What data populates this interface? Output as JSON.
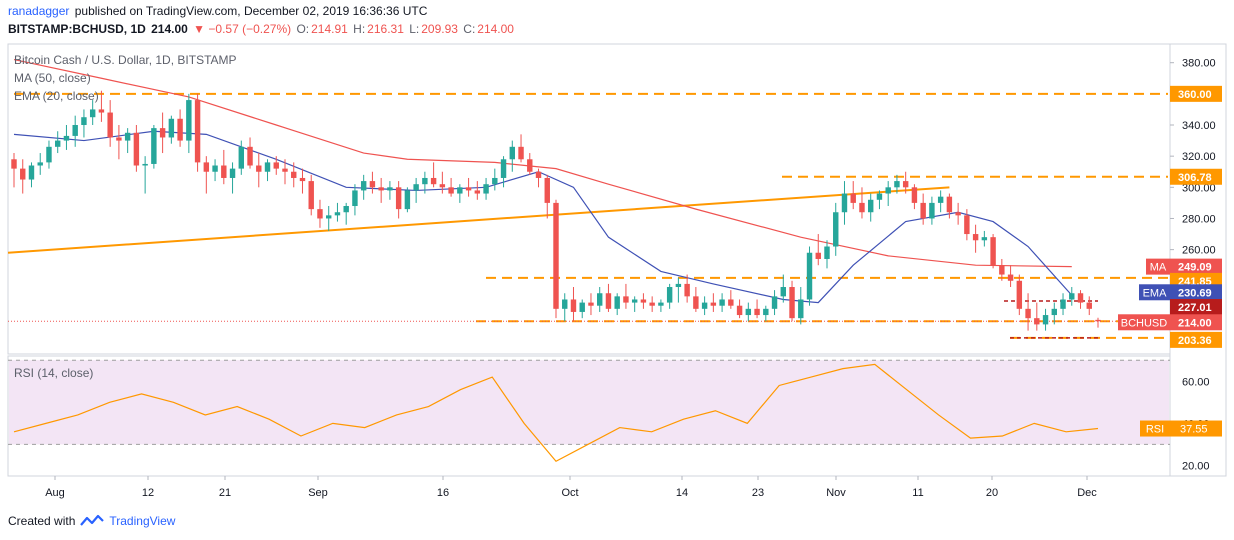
{
  "header": {
    "user": "ranadagger",
    "published_text": "published on TradingView.com, December 02, 2019 16:36:36 UTC",
    "symbol": "BITSTAMP:BCHUSD, 1D",
    "last": "214.00",
    "change": "▼ −0.57 (−0.27%)",
    "ohlc_o_label": "O:",
    "ohlc_o": "214.91",
    "ohlc_h_label": "H:",
    "ohlc_h": "216.31",
    "ohlc_l_label": "L:",
    "ohlc_l": "209.93",
    "ohlc_c_label": "C:",
    "ohlc_c": "214.00"
  },
  "legend": {
    "title": "Bitcoin Cash / U.S. Dollar, 1D, BITSTAMP",
    "ma": "MA (50, close)",
    "ema": "EMA (20, close)",
    "rsi": "RSI (14, close)"
  },
  "footer": {
    "created_with": "Created with",
    "brand": "TradingView"
  },
  "colors": {
    "up": "#26a69a",
    "down": "#ef5350",
    "ma": "#ef5350",
    "ema": "#3f51b5",
    "trend": "#ff9800",
    "support": "#ff9800",
    "rsi": "#ff9800",
    "rsi_fill": "#f3e5f5",
    "red_dash": "#b71c1c"
  },
  "chart_data": {
    "type": "candlestick",
    "x_ticks": [
      "Aug",
      "12",
      "21",
      "Sep",
      "16",
      "Oct",
      "14",
      "23",
      "Nov",
      "11",
      "20",
      "Dec"
    ],
    "y_ticks": [
      200,
      220,
      240,
      260,
      280,
      300,
      320,
      340,
      360,
      380
    ],
    "y_tick_labels": [
      "200.00",
      "220.00",
      "240.00",
      "260.00",
      "280.00",
      "300.00",
      "320.00",
      "340.00",
      "360.00",
      "380.00"
    ],
    "ylim": [
      193,
      392
    ],
    "price_tags": [
      {
        "label": "",
        "value": "360.00",
        "kind": "orange"
      },
      {
        "label": "",
        "value": "306.78",
        "kind": "orange"
      },
      {
        "label": "MA",
        "value": "249.09",
        "kind": "red"
      },
      {
        "label": "",
        "value": "241.85",
        "kind": "orange"
      },
      {
        "label": "EMA",
        "value": "230.69",
        "kind": "blue"
      },
      {
        "label": "",
        "value": "227.01",
        "kind": "darkred"
      },
      {
        "label": "BCHUSD",
        "value": "214.00",
        "kind": "red"
      },
      {
        "label": "",
        "value": "203.36",
        "kind": "orange"
      }
    ],
    "horizontal_levels": [
      360.0,
      306.78,
      241.85,
      214.0,
      203.36,
      227.01
    ],
    "ohlc": [
      [
        318,
        322,
        300,
        312
      ],
      [
        312,
        318,
        296,
        305
      ],
      [
        305,
        316,
        300,
        314
      ],
      [
        314,
        322,
        308,
        316
      ],
      [
        316,
        330,
        312,
        326
      ],
      [
        326,
        336,
        322,
        330
      ],
      [
        330,
        340,
        324,
        333
      ],
      [
        333,
        346,
        326,
        340
      ],
      [
        340,
        350,
        332,
        345
      ],
      [
        345,
        356,
        340,
        350
      ],
      [
        350,
        362,
        342,
        348
      ],
      [
        348,
        356,
        326,
        332
      ],
      [
        332,
        340,
        318,
        330
      ],
      [
        330,
        338,
        322,
        335
      ],
      [
        335,
        340,
        310,
        314
      ],
      [
        314,
        320,
        296,
        315
      ],
      [
        315,
        340,
        312,
        338
      ],
      [
        338,
        348,
        322,
        332
      ],
      [
        332,
        346,
        328,
        344
      ],
      [
        344,
        350,
        326,
        330
      ],
      [
        330,
        360,
        322,
        356
      ],
      [
        356,
        360,
        310,
        316
      ],
      [
        316,
        320,
        296,
        310
      ],
      [
        310,
        318,
        304,
        314
      ],
      [
        314,
        324,
        302,
        306
      ],
      [
        306,
        316,
        296,
        312
      ],
      [
        312,
        330,
        308,
        326
      ],
      [
        326,
        332,
        312,
        314
      ],
      [
        314,
        322,
        300,
        310
      ],
      [
        310,
        318,
        304,
        316
      ],
      [
        316,
        320,
        308,
        312
      ],
      [
        312,
        318,
        302,
        310
      ],
      [
        310,
        316,
        300,
        306
      ],
      [
        306,
        312,
        296,
        304
      ],
      [
        304,
        308,
        282,
        286
      ],
      [
        286,
        292,
        274,
        280
      ],
      [
        280,
        288,
        272,
        282
      ],
      [
        282,
        290,
        278,
        284
      ],
      [
        284,
        290,
        276,
        288
      ],
      [
        288,
        302,
        282,
        298
      ],
      [
        298,
        308,
        292,
        304
      ],
      [
        304,
        310,
        296,
        300
      ],
      [
        300,
        306,
        290,
        298
      ],
      [
        298,
        304,
        292,
        300
      ],
      [
        300,
        304,
        280,
        286
      ],
      [
        286,
        300,
        284,
        298
      ],
      [
        298,
        306,
        290,
        302
      ],
      [
        302,
        310,
        296,
        306
      ],
      [
        306,
        316,
        300,
        302
      ],
      [
        302,
        310,
        296,
        300
      ],
      [
        300,
        306,
        294,
        296
      ],
      [
        296,
        302,
        290,
        300
      ],
      [
        300,
        306,
        294,
        298
      ],
      [
        298,
        304,
        292,
        296
      ],
      [
        296,
        306,
        292,
        302
      ],
      [
        302,
        312,
        298,
        306
      ],
      [
        306,
        320,
        300,
        318
      ],
      [
        318,
        330,
        310,
        326
      ],
      [
        326,
        334,
        316,
        318
      ],
      [
        318,
        322,
        308,
        310
      ],
      [
        310,
        312,
        300,
        306
      ],
      [
        306,
        308,
        280,
        290
      ],
      [
        290,
        292,
        216,
        222
      ],
      [
        222,
        232,
        214,
        228
      ],
      [
        228,
        236,
        214,
        220
      ],
      [
        220,
        228,
        216,
        226
      ],
      [
        226,
        232,
        218,
        224
      ],
      [
        224,
        236,
        220,
        232
      ],
      [
        232,
        238,
        220,
        222
      ],
      [
        222,
        232,
        218,
        230
      ],
      [
        230,
        238,
        222,
        226
      ],
      [
        226,
        230,
        220,
        228
      ],
      [
        228,
        232,
        222,
        226
      ],
      [
        226,
        230,
        220,
        224
      ],
      [
        224,
        228,
        220,
        226
      ],
      [
        226,
        238,
        222,
        236
      ],
      [
        236,
        242,
        226,
        238
      ],
      [
        238,
        244,
        226,
        230
      ],
      [
        230,
        236,
        220,
        222
      ],
      [
        222,
        230,
        218,
        226
      ],
      [
        226,
        232,
        220,
        224
      ],
      [
        224,
        232,
        220,
        228
      ],
      [
        228,
        234,
        222,
        224
      ],
      [
        224,
        228,
        216,
        218
      ],
      [
        218,
        226,
        214,
        222
      ],
      [
        222,
        228,
        216,
        218
      ],
      [
        218,
        224,
        214,
        222
      ],
      [
        222,
        234,
        218,
        230
      ],
      [
        230,
        244,
        226,
        236
      ],
      [
        236,
        240,
        214,
        216
      ],
      [
        216,
        236,
        212,
        228
      ],
      [
        228,
        262,
        224,
        258
      ],
      [
        258,
        270,
        250,
        254
      ],
      [
        254,
        266,
        248,
        262
      ],
      [
        262,
        290,
        256,
        284
      ],
      [
        284,
        304,
        276,
        296
      ],
      [
        296,
        304,
        286,
        290
      ],
      [
        290,
        300,
        280,
        284
      ],
      [
        284,
        296,
        278,
        292
      ],
      [
        292,
        298,
        286,
        296
      ],
      [
        296,
        304,
        288,
        300
      ],
      [
        300,
        308,
        296,
        304
      ],
      [
        304,
        310,
        296,
        300
      ],
      [
        300,
        302,
        286,
        290
      ],
      [
        290,
        296,
        276,
        280
      ],
      [
        280,
        294,
        276,
        290
      ],
      [
        290,
        298,
        284,
        294
      ],
      [
        294,
        296,
        280,
        284
      ],
      [
        284,
        290,
        276,
        282
      ],
      [
        282,
        286,
        266,
        270
      ],
      [
        270,
        276,
        258,
        266
      ],
      [
        266,
        272,
        262,
        268
      ],
      [
        268,
        270,
        248,
        250
      ],
      [
        250,
        254,
        240,
        244
      ],
      [
        244,
        250,
        236,
        240
      ],
      [
        240,
        244,
        218,
        222
      ],
      [
        222,
        232,
        208,
        216
      ],
      [
        216,
        226,
        208,
        212
      ],
      [
        212,
        222,
        208,
        218
      ],
      [
        218,
        226,
        212,
        222
      ],
      [
        222,
        232,
        218,
        228
      ],
      [
        228,
        236,
        224,
        232
      ],
      [
        232,
        234,
        222,
        226
      ],
      [
        226,
        230,
        218,
        222
      ],
      [
        214.91,
        216.31,
        209.93,
        214.0
      ]
    ],
    "ma50": [
      {
        "i": 0,
        "v": 382
      },
      {
        "i": 10,
        "v": 370
      },
      {
        "i": 20,
        "v": 358
      },
      {
        "i": 30,
        "v": 340
      },
      {
        "i": 40,
        "v": 322
      },
      {
        "i": 45,
        "v": 318
      },
      {
        "i": 55,
        "v": 316
      },
      {
        "i": 62,
        "v": 312
      },
      {
        "i": 68,
        "v": 302
      },
      {
        "i": 78,
        "v": 286
      },
      {
        "i": 90,
        "v": 268
      },
      {
        "i": 100,
        "v": 256
      },
      {
        "i": 110,
        "v": 250
      },
      {
        "i": 121,
        "v": 249.09
      }
    ],
    "ema20": [
      {
        "i": 0,
        "v": 334
      },
      {
        "i": 8,
        "v": 330
      },
      {
        "i": 16,
        "v": 336
      },
      {
        "i": 22,
        "v": 334
      },
      {
        "i": 30,
        "v": 318
      },
      {
        "i": 38,
        "v": 300
      },
      {
        "i": 46,
        "v": 298
      },
      {
        "i": 54,
        "v": 300
      },
      {
        "i": 60,
        "v": 310
      },
      {
        "i": 64,
        "v": 300
      },
      {
        "i": 68,
        "v": 268
      },
      {
        "i": 74,
        "v": 246
      },
      {
        "i": 80,
        "v": 238
      },
      {
        "i": 88,
        "v": 228
      },
      {
        "i": 92,
        "v": 226
      },
      {
        "i": 96,
        "v": 250
      },
      {
        "i": 102,
        "v": 278
      },
      {
        "i": 108,
        "v": 284
      },
      {
        "i": 112,
        "v": 278
      },
      {
        "i": 116,
        "v": 262
      },
      {
        "i": 121,
        "v": 230.69
      }
    ],
    "trendline": [
      {
        "i": 0,
        "v": 258
      },
      {
        "i": 107,
        "v": 300
      }
    ],
    "rsi": {
      "title": "RSI (14, close)",
      "value_label": "RSI",
      "value": "37.55",
      "y_ticks": [
        20,
        40,
        60
      ],
      "y_tick_labels": [
        "20.00",
        "40.00",
        "60.00"
      ],
      "ylim": [
        15,
        72
      ],
      "band": [
        30,
        70
      ],
      "values": [
        [
          0,
          36
        ],
        [
          4,
          40
        ],
        [
          8,
          44
        ],
        [
          12,
          50
        ],
        [
          16,
          54
        ],
        [
          20,
          50
        ],
        [
          24,
          44
        ],
        [
          28,
          48
        ],
        [
          32,
          42
        ],
        [
          36,
          34
        ],
        [
          40,
          40
        ],
        [
          44,
          38
        ],
        [
          48,
          44
        ],
        [
          52,
          48
        ],
        [
          56,
          56
        ],
        [
          60,
          62
        ],
        [
          64,
          40
        ],
        [
          68,
          22
        ],
        [
          72,
          30
        ],
        [
          76,
          38
        ],
        [
          80,
          36
        ],
        [
          84,
          42
        ],
        [
          88,
          46
        ],
        [
          92,
          40
        ],
        [
          96,
          58
        ],
        [
          100,
          62
        ],
        [
          104,
          66
        ],
        [
          108,
          68
        ],
        [
          112,
          56
        ],
        [
          116,
          44
        ],
        [
          120,
          33
        ],
        [
          124,
          34
        ],
        [
          128,
          40
        ],
        [
          132,
          36
        ],
        [
          136,
          37.55
        ]
      ]
    }
  }
}
